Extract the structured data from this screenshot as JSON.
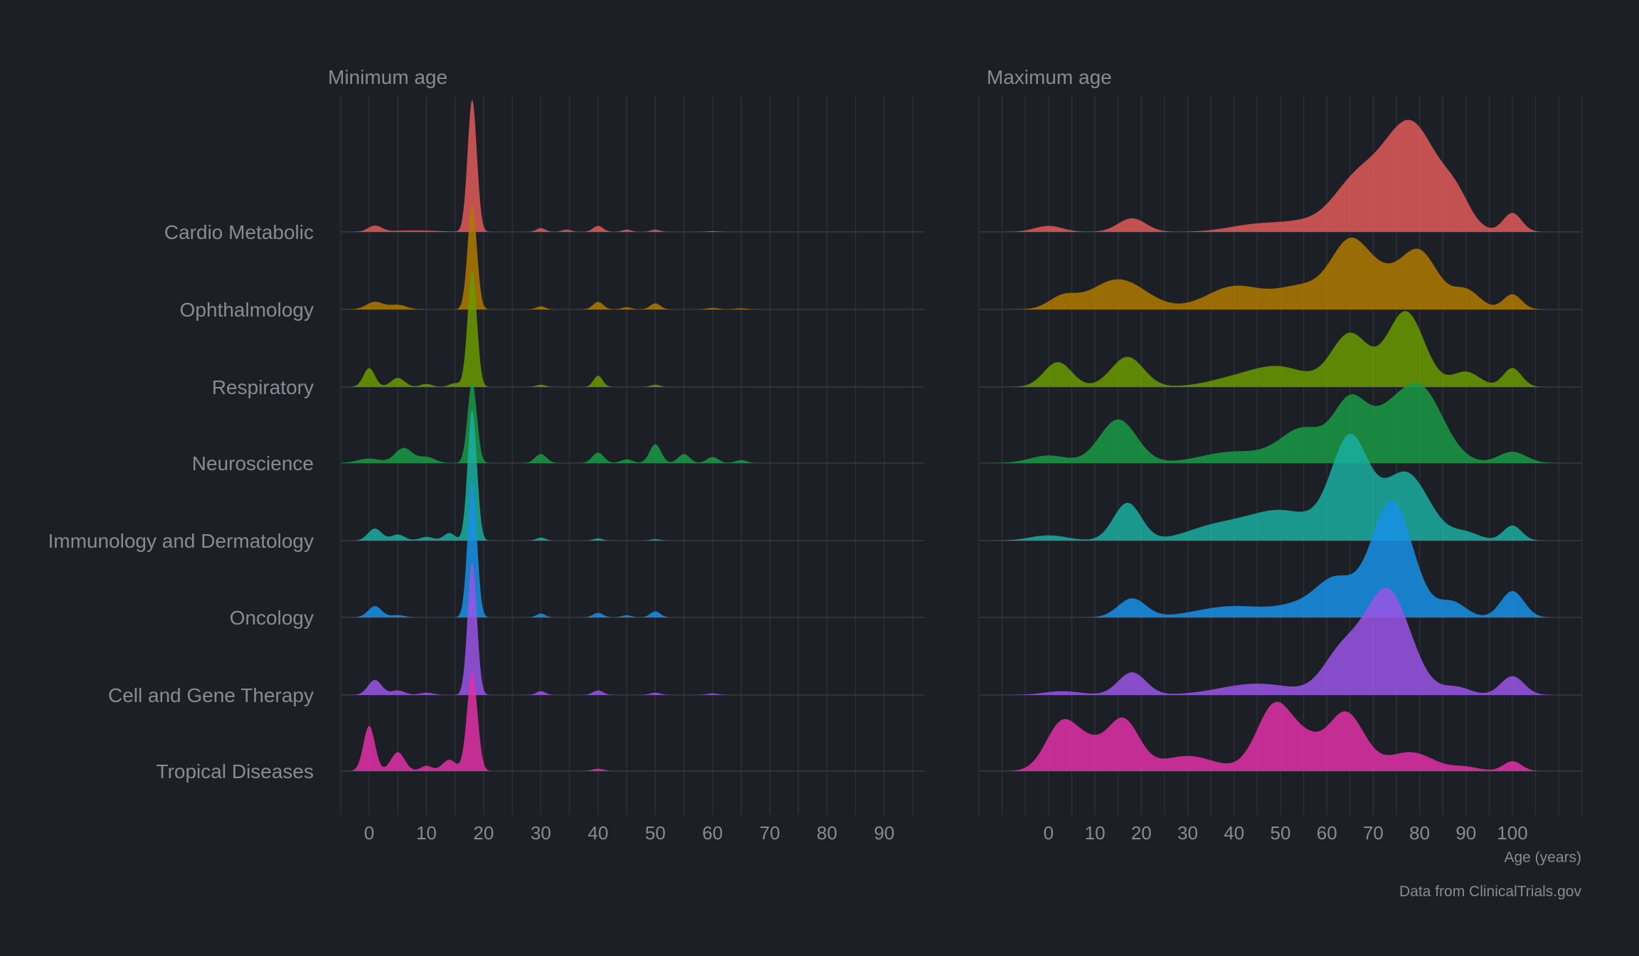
{
  "chart_data": {
    "type": "ridgeline",
    "categories": [
      "Cardio Metabolic",
      "Ophthalmology",
      "Respiratory",
      "Neuroscience",
      "Immunology and Dermatology",
      "Oncology",
      "Cell and Gene Therapy",
      "Tropical Diseases"
    ],
    "colors": [
      "#e05a5a",
      "#b07a00",
      "#6a9a00",
      "#1a9a45",
      "#1aaea0",
      "#1890e8",
      "#9a55e8",
      "#e030a8"
    ],
    "xlabel": "Age (years)",
    "caption": "Data from ClinicalTrials.gov",
    "density_note": "each ridge = sum of components [center_years, spread_years, relative_height]",
    "panels": [
      {
        "title": "Minimum age",
        "xlim": [
          -5,
          96
        ],
        "ticks": [
          0,
          10,
          20,
          30,
          40,
          50,
          60,
          70,
          80,
          90
        ],
        "densities": [
          [
            [
              18,
              0.8,
              1.76
            ],
            [
              1,
              1.2,
              0.08
            ],
            [
              8,
              4,
              0.02
            ],
            [
              30,
              0.8,
              0.05
            ],
            [
              34.5,
              0.8,
              0.03
            ],
            [
              40,
              0.9,
              0.08
            ],
            [
              45,
              0.8,
              0.03
            ],
            [
              50,
              0.8,
              0.03
            ],
            [
              60,
              1,
              0.01
            ]
          ],
          [
            [
              18,
              0.8,
              1.39
            ],
            [
              1,
              1.5,
              0.1
            ],
            [
              5,
              1.5,
              0.06
            ],
            [
              30,
              0.8,
              0.04
            ],
            [
              40,
              0.9,
              0.1
            ],
            [
              45,
              0.8,
              0.03
            ],
            [
              50,
              0.9,
              0.08
            ],
            [
              60,
              1,
              0.02
            ],
            [
              65,
              1,
              0.015
            ]
          ],
          [
            [
              18,
              0.8,
              1.55
            ],
            [
              0,
              1,
              0.25
            ],
            [
              5,
              1.2,
              0.12
            ],
            [
              10,
              1,
              0.04
            ],
            [
              15,
              1,
              0.05
            ],
            [
              30,
              0.8,
              0.03
            ],
            [
              40,
              0.8,
              0.15
            ],
            [
              50,
              0.8,
              0.03
            ]
          ],
          [
            [
              18,
              0.8,
              1.08
            ],
            [
              0,
              2,
              0.06
            ],
            [
              6,
              1.5,
              0.2
            ],
            [
              10,
              1.5,
              0.08
            ],
            [
              30,
              1,
              0.12
            ],
            [
              40,
              1,
              0.14
            ],
            [
              45,
              1,
              0.05
            ],
            [
              50,
              1,
              0.25
            ],
            [
              55,
              1,
              0.12
            ],
            [
              60,
              1,
              0.08
            ],
            [
              65,
              1,
              0.04
            ]
          ],
          [
            [
              18,
              0.8,
              1.74
            ],
            [
              1,
              1.2,
              0.16
            ],
            [
              5,
              1.2,
              0.08
            ],
            [
              10,
              1.2,
              0.05
            ],
            [
              14,
              1,
              0.1
            ],
            [
              30,
              0.8,
              0.04
            ],
            [
              40,
              0.8,
              0.03
            ],
            [
              50,
              0.8,
              0.02
            ]
          ],
          [
            [
              18,
              0.8,
              1.8
            ],
            [
              1,
              1.2,
              0.15
            ],
            [
              5,
              1.2,
              0.03
            ],
            [
              30,
              0.8,
              0.05
            ],
            [
              40,
              0.9,
              0.06
            ],
            [
              45,
              0.8,
              0.03
            ],
            [
              50,
              0.9,
              0.08
            ]
          ],
          [
            [
              18,
              0.8,
              1.76
            ],
            [
              1,
              1.2,
              0.2
            ],
            [
              5,
              1.2,
              0.06
            ],
            [
              10,
              1.2,
              0.03
            ],
            [
              30,
              0.8,
              0.05
            ],
            [
              40,
              0.9,
              0.06
            ],
            [
              50,
              0.9,
              0.03
            ],
            [
              60,
              1,
              0.02
            ]
          ],
          [
            [
              18,
              0.9,
              1.32
            ],
            [
              0,
              1,
              0.6
            ],
            [
              5,
              1.2,
              0.25
            ],
            [
              10,
              1,
              0.07
            ],
            [
              14,
              1.2,
              0.15
            ],
            [
              40,
              1,
              0.03
            ]
          ]
        ]
      },
      {
        "title": "Maximum age",
        "xlim": [
          -15,
          115
        ],
        "ticks": [
          0,
          10,
          20,
          30,
          40,
          50,
          60,
          70,
          80,
          90,
          100
        ],
        "densities": [
          [
            [
              78,
              6,
              1.45
            ],
            [
              66,
              5,
              0.6
            ],
            [
              88,
              3,
              0.3
            ],
            [
              100,
              2,
              0.25
            ],
            [
              0,
              3,
              0.08
            ],
            [
              18,
              3,
              0.18
            ],
            [
              45,
              6,
              0.1
            ],
            [
              55,
              5,
              0.1
            ]
          ],
          [
            [
              65,
              4,
              0.8
            ],
            [
              80,
              4,
              0.75
            ],
            [
              72,
              4,
              0.35
            ],
            [
              90,
              3,
              0.25
            ],
            [
              100,
              2,
              0.2
            ],
            [
              15,
              6,
              0.4
            ],
            [
              3,
              3,
              0.15
            ],
            [
              40,
              6,
              0.3
            ],
            [
              55,
              6,
              0.3
            ]
          ],
          [
            [
              77,
              4,
              1.0
            ],
            [
              65,
              4,
              0.7
            ],
            [
              90,
              3,
              0.2
            ],
            [
              100,
              2,
              0.25
            ],
            [
              2,
              3,
              0.33
            ],
            [
              17,
              3.5,
              0.4
            ],
            [
              50,
              6,
              0.25
            ],
            [
              40,
              6,
              0.1
            ]
          ],
          [
            [
              80,
              5,
              1.0
            ],
            [
              65,
              3.5,
              0.75
            ],
            [
              55,
              5,
              0.45
            ],
            [
              72,
              4,
              0.4
            ],
            [
              15,
              4,
              0.58
            ],
            [
              0,
              4,
              0.1
            ],
            [
              40,
              7,
              0.15
            ],
            [
              100,
              3,
              0.15
            ]
          ],
          [
            [
              65,
              4,
              1.3
            ],
            [
              77,
              5,
              0.9
            ],
            [
              50,
              8,
              0.4
            ],
            [
              17,
              3,
              0.5
            ],
            [
              0,
              4,
              0.07
            ],
            [
              35,
              6,
              0.15
            ],
            [
              100,
              2,
              0.2
            ],
            [
              90,
              3,
              0.1
            ]
          ],
          [
            [
              74,
              4.5,
              1.55
            ],
            [
              62,
              4,
              0.45
            ],
            [
              87,
              3,
              0.2
            ],
            [
              100,
              2.5,
              0.35
            ],
            [
              18,
              3,
              0.25
            ],
            [
              40,
              8,
              0.15
            ],
            [
              55,
              5,
              0.15
            ]
          ],
          [
            [
              73,
              5,
              1.4
            ],
            [
              63,
              4,
              0.5
            ],
            [
              100,
              2.5,
              0.25
            ],
            [
              18,
              3,
              0.3
            ],
            [
              3,
              4,
              0.05
            ],
            [
              45,
              8,
              0.15
            ],
            [
              88,
              3,
              0.1
            ]
          ],
          [
            [
              3,
              3.5,
              0.65
            ],
            [
              16,
              3.5,
              0.68
            ],
            [
              9,
              3,
              0.25
            ],
            [
              49,
              4,
              0.9
            ],
            [
              64,
              4,
              0.78
            ],
            [
              56,
              3,
              0.25
            ],
            [
              30,
              6,
              0.2
            ],
            [
              78,
              5,
              0.25
            ],
            [
              100,
              2,
              0.13
            ],
            [
              90,
              3,
              0.05
            ]
          ]
        ]
      }
    ]
  }
}
